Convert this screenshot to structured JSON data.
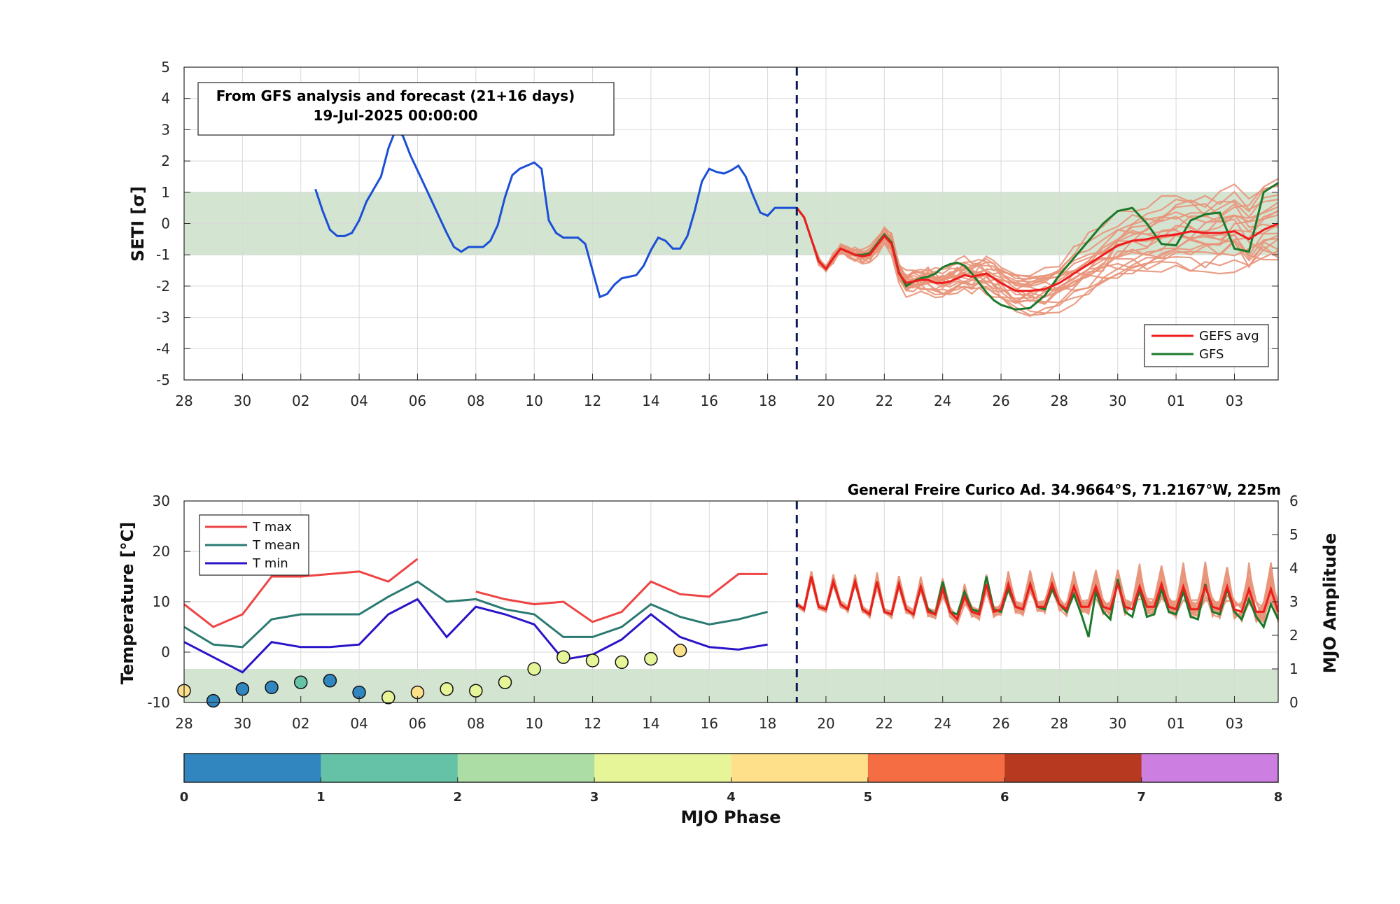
{
  "colors": {
    "obs_line": "#1a4fd6",
    "ensemble": "#e8957a",
    "gefs_avg": "#ee1c1c",
    "gfs": "#1a7a2a",
    "band": "#d3e4d1",
    "tmax": "#ee4444",
    "tmean": "#2a7a72",
    "tmin": "#2a14c8",
    "forecast_divider": "#0c1a5a"
  },
  "chart_data": [
    {
      "type": "line",
      "ylabel": "SETI [σ]",
      "ylim": [
        -5,
        5
      ],
      "yticks": [
        "5",
        "4",
        "3",
        "2",
        "1",
        "0",
        "-1",
        "-2",
        "-3",
        "-4",
        "-5"
      ],
      "x_range_days": [
        0,
        37.5
      ],
      "xticks": [
        "28",
        "30",
        "02",
        "04",
        "06",
        "08",
        "10",
        "12",
        "14",
        "16",
        "18",
        "20",
        "22",
        "24",
        "26",
        "28",
        "30",
        "01",
        "03"
      ],
      "grid": true,
      "normal_band": [
        -1,
        1
      ],
      "forecast_start_day": 21,
      "annotation": {
        "line1": "From GFS analysis and forecast (21+16 days)",
        "line2": "19-Jul-2025 00:00:00"
      },
      "legend": {
        "placement": "bottom-right",
        "entries": [
          "GEFS avg",
          "GFS"
        ]
      },
      "series": [
        {
          "role": "observed",
          "x": [
            4.5,
            4.75,
            5,
            5.25,
            5.5,
            5.75,
            6,
            6.25,
            6.5,
            6.75,
            7,
            7.25,
            7.5,
            7.75,
            8,
            8.25,
            8.5,
            8.75,
            9,
            9.25,
            9.5,
            9.75,
            10,
            10.25,
            10.5,
            10.75,
            11,
            11.25,
            11.5,
            11.75,
            12,
            12.25,
            12.5,
            12.75,
            13,
            13.25,
            13.5,
            13.75,
            14,
            14.25,
            14.5,
            14.75,
            15,
            15.25,
            15.5,
            15.75,
            16,
            16.25,
            16.5,
            16.75,
            17,
            17.25,
            17.5,
            17.75,
            18,
            18.25,
            18.5,
            18.75,
            19,
            19.25,
            19.5,
            19.75,
            20,
            20.25,
            20.5,
            20.75,
            21
          ],
          "y": [
            1.1,
            0.4,
            -0.2,
            -0.4,
            -0.4,
            -0.3,
            0.1,
            0.7,
            1.1,
            1.5,
            2.4,
            3.0,
            2.8,
            2.2,
            1.7,
            1.2,
            0.7,
            0.2,
            -0.3,
            -0.75,
            -0.9,
            -0.75,
            -0.75,
            -0.75,
            -0.55,
            -0.05,
            0.85,
            1.55,
            1.75,
            1.85,
            1.95,
            1.75,
            0.1,
            -0.3,
            -0.45,
            -0.45,
            -0.45,
            -0.65,
            -1.5,
            -2.35,
            -2.25,
            -1.95,
            -1.75,
            -1.7,
            -1.65,
            -1.35,
            -0.85,
            -0.45,
            -0.55,
            -0.8,
            -0.8,
            -0.4,
            0.4,
            1.35,
            1.75,
            1.65,
            1.6,
            1.7,
            1.85,
            1.5,
            0.9,
            0.35,
            0.25,
            0.5,
            0.5,
            0.5,
            0.5
          ]
        },
        {
          "name": "GEFS avg",
          "x": [
            21,
            21.25,
            21.5,
            21.75,
            22,
            22.25,
            22.5,
            22.75,
            23,
            23.25,
            23.5,
            23.75,
            24,
            24.25,
            24.5,
            24.75,
            25,
            25.25,
            25.5,
            25.75,
            26,
            26.25,
            26.5,
            26.75,
            27,
            27.25,
            27.5,
            27.75,
            28,
            28.5,
            29,
            29.5,
            30,
            30.5,
            31,
            31.5,
            32,
            32.5,
            33,
            33.5,
            34,
            34.5,
            35,
            35.5,
            36,
            36.5,
            37,
            37.5
          ],
          "y": [
            0.5,
            0.2,
            -0.5,
            -1.2,
            -1.45,
            -1.1,
            -0.8,
            -0.9,
            -1.0,
            -1.05,
            -1.0,
            -0.7,
            -0.4,
            -0.65,
            -1.6,
            -1.9,
            -1.85,
            -1.8,
            -1.8,
            -1.9,
            -1.9,
            -1.85,
            -1.75,
            -1.65,
            -1.7,
            -1.65,
            -1.6,
            -1.75,
            -1.9,
            -2.15,
            -2.15,
            -2.1,
            -1.9,
            -1.6,
            -1.3,
            -1.0,
            -0.7,
            -0.55,
            -0.5,
            -0.4,
            -0.35,
            -0.25,
            -0.3,
            -0.3,
            -0.25,
            -0.5,
            -0.2,
            0.0
          ]
        },
        {
          "name": "GFS",
          "x": [
            21,
            21.25,
            21.5,
            21.75,
            22,
            22.25,
            22.5,
            22.75,
            23,
            23.25,
            23.5,
            23.75,
            24,
            24.25,
            24.5,
            24.75,
            25,
            25.25,
            25.5,
            25.75,
            26,
            26.25,
            26.5,
            26.75,
            27,
            27.25,
            27.5,
            27.75,
            28,
            28.5,
            29,
            29.5,
            30,
            30.5,
            31,
            31.5,
            32,
            32.5,
            33,
            33.5,
            34,
            34.5,
            35,
            35.5,
            36,
            36.5,
            37,
            37.5
          ],
          "y": [
            0.5,
            0.2,
            -0.5,
            -1.2,
            -1.45,
            -1.1,
            -0.8,
            -0.9,
            -1.0,
            -1.0,
            -0.95,
            -0.65,
            -0.35,
            -0.6,
            -1.55,
            -2.0,
            -1.85,
            -1.75,
            -1.7,
            -1.6,
            -1.4,
            -1.3,
            -1.25,
            -1.35,
            -1.6,
            -1.9,
            -2.2,
            -2.45,
            -2.6,
            -2.75,
            -2.7,
            -2.3,
            -1.65,
            -1.1,
            -0.55,
            0.0,
            0.4,
            0.5,
            0.0,
            -0.65,
            -0.7,
            0.1,
            0.3,
            0.35,
            -0.8,
            -0.9,
            1.0,
            1.3
          ]
        }
      ]
    },
    {
      "type": "line",
      "title": "General Freire Curico Ad. 34.9664°S, 71.2167°W, 225m",
      "ylabel": "Temperature [°C]",
      "ylabel_right": "MJO Amplitude",
      "ylim": [
        -10,
        30
      ],
      "ylim_right": [
        0,
        6
      ],
      "yticks": [
        "30",
        "20",
        "10",
        "0",
        "-10"
      ],
      "yticks_right": [
        "6",
        "5",
        "4",
        "3",
        "2",
        "1",
        "0"
      ],
      "x_range_days": [
        0,
        37.5
      ],
      "xticks": [
        "28",
        "30",
        "02",
        "04",
        "06",
        "08",
        "10",
        "12",
        "14",
        "16",
        "18",
        "20",
        "22",
        "24",
        "26",
        "28",
        "30",
        "01",
        "03"
      ],
      "grid": true,
      "mjo_band": [
        0,
        1
      ],
      "forecast_start_day": 21,
      "legend": {
        "placement": "top-left",
        "entries": [
          "T max",
          "T mean",
          "T min"
        ]
      },
      "series": [
        {
          "name": "T max",
          "segments": [
            {
              "x": [
                0,
                1,
                2,
                3,
                4,
                5,
                6,
                7,
                8
              ],
              "y": [
                9.5,
                5.0,
                7.5,
                15.0,
                15.0,
                15.5,
                16.0,
                14.0,
                18.5
              ]
            },
            {
              "x": [
                10,
                11,
                12,
                13,
                14,
                15,
                16,
                17,
                18,
                19,
                20
              ],
              "y": [
                12.0,
                10.5,
                9.5,
                10.0,
                6.0,
                8.0,
                14.0,
                11.5,
                11.0,
                15.5,
                15.5
              ]
            }
          ]
        },
        {
          "name": "T mean",
          "segments": [
            {
              "x": [
                0,
                1,
                2,
                3,
                4,
                5,
                6,
                7,
                8,
                9,
                10,
                11,
                12,
                13,
                14,
                15,
                16,
                17,
                18,
                19,
                20
              ],
              "y": [
                5.0,
                1.5,
                1.0,
                6.5,
                7.5,
                7.5,
                7.5,
                11.0,
                14.0,
                10.0,
                10.5,
                8.5,
                7.5,
                3.0,
                3.0,
                5.0,
                9.5,
                7.0,
                5.5,
                6.5,
                8.0
              ]
            }
          ]
        },
        {
          "name": "T min",
          "segments": [
            {
              "x": [
                0,
                1,
                2,
                3,
                4,
                5,
                6,
                7,
                8,
                9,
                10,
                11,
                12,
                13,
                14,
                15,
                16,
                17,
                18,
                19,
                20
              ],
              "y": [
                2.0,
                -1.0,
                -4.0,
                2.0,
                1.0,
                1.0,
                1.5,
                7.5,
                10.5,
                3.0,
                9.0,
                7.5,
                5.5,
                -1.5,
                -0.5,
                2.5,
                7.5,
                3.0,
                1.0,
                0.5,
                1.5
              ]
            }
          ]
        },
        {
          "name": "GEFS avg",
          "x": [
            21,
            21.25,
            21.5,
            21.75,
            22,
            22.25,
            22.5,
            22.75,
            23,
            23.25,
            23.5,
            23.75,
            24,
            24.25,
            24.5,
            24.75,
            25,
            25.25,
            25.5,
            25.75,
            26,
            26.25,
            26.5,
            26.75,
            27,
            27.25,
            27.5,
            27.75,
            28,
            28.25,
            28.5,
            28.75,
            29,
            29.25,
            29.5,
            29.75,
            30,
            30.25,
            30.5,
            30.75,
            31,
            31.25,
            31.5,
            31.75,
            32,
            32.25,
            32.5,
            32.75,
            33,
            33.25,
            33.5,
            33.75,
            34,
            34.25,
            34.5,
            34.75,
            35,
            35.25,
            35.5,
            35.75,
            36,
            36.25,
            36.5,
            36.75,
            37,
            37.25,
            37.5
          ],
          "y": [
            9.5,
            8.5,
            15.0,
            9.0,
            8.5,
            14.0,
            9.5,
            8.5,
            14.0,
            8.5,
            7.5,
            14.0,
            8.0,
            7.5,
            13.5,
            8.5,
            7.5,
            13.0,
            8.0,
            7.5,
            12.5,
            8.0,
            6.5,
            11.0,
            8.0,
            7.5,
            13.5,
            8.0,
            8.5,
            13.5,
            9.0,
            8.5,
            13.5,
            9.0,
            9.0,
            13.5,
            9.5,
            8.5,
            13.0,
            9.0,
            9.0,
            13.0,
            9.0,
            8.5,
            13.5,
            9.0,
            8.5,
            13.0,
            9.0,
            9.0,
            13.5,
            9.0,
            8.5,
            13.0,
            8.5,
            8.5,
            13.0,
            9.0,
            8.5,
            13.0,
            8.5,
            8.0,
            12.5,
            8.0,
            8.0,
            12.5,
            8.0
          ]
        },
        {
          "name": "GFS",
          "x": [
            21,
            21.25,
            21.5,
            21.75,
            22,
            22.25,
            22.5,
            22.75,
            23,
            23.25,
            23.5,
            23.75,
            24,
            24.25,
            24.5,
            24.75,
            25,
            25.25,
            25.5,
            25.75,
            26,
            26.25,
            26.5,
            26.75,
            27,
            27.25,
            27.5,
            27.75,
            28,
            28.25,
            28.5,
            28.75,
            29,
            29.25,
            29.5,
            29.75,
            30,
            30.25,
            30.5,
            30.75,
            31,
            31.25,
            31.5,
            31.75,
            32,
            32.25,
            32.5,
            32.75,
            33,
            33.25,
            33.5,
            33.75,
            34,
            34.25,
            34.5,
            34.75,
            35,
            35.25,
            35.5,
            35.75,
            36,
            36.25,
            36.5,
            36.75,
            37,
            37.25,
            37.5
          ],
          "y": [
            9.5,
            8.5,
            15.0,
            9.0,
            8.5,
            14.0,
            9.5,
            8.5,
            14.0,
            8.5,
            7.5,
            14.0,
            8.0,
            7.5,
            13.5,
            8.5,
            7.5,
            13.0,
            8.5,
            7.5,
            14.0,
            8.0,
            7.5,
            12.0,
            8.5,
            8.0,
            15.0,
            8.5,
            8.0,
            12.5,
            9.0,
            8.5,
            13.5,
            9.0,
            8.5,
            12.5,
            9.5,
            8.0,
            11.5,
            7.5,
            3.0,
            12.0,
            8.0,
            6.5,
            14.5,
            8.0,
            7.0,
            12.5,
            7.0,
            7.5,
            12.5,
            8.0,
            7.5,
            12.0,
            7.0,
            6.5,
            13.5,
            8.0,
            7.5,
            12.5,
            8.0,
            6.5,
            10.5,
            7.0,
            5.0,
            9.5,
            6.5
          ]
        },
        {
          "role": "mjo_phase_points",
          "axis": "right",
          "x": [
            0,
            1,
            2,
            3,
            4,
            5,
            6,
            7,
            8,
            9,
            10,
            11,
            12,
            13,
            14,
            15,
            16,
            17
          ],
          "y": [
            0.35,
            0.05,
            0.4,
            0.45,
            0.6,
            0.65,
            0.3,
            0.15,
            0.3,
            0.4,
            0.35,
            0.6,
            1.0,
            1.35,
            1.25,
            1.2,
            1.3,
            1.55
          ],
          "phase": [
            4,
            0,
            0,
            0,
            1,
            0,
            0,
            3,
            4,
            3,
            3,
            3,
            3,
            3,
            3,
            3,
            3,
            4
          ]
        }
      ]
    },
    {
      "type": "heatmap",
      "role": "colorbar",
      "xlabel": "MJO Phase",
      "ticks": [
        "0",
        "1",
        "2",
        "3",
        "4",
        "5",
        "6",
        "7",
        "8"
      ],
      "colors": [
        "#3186c0",
        "#66c2a6",
        "#abddA4",
        "#e6f598",
        "#fee08b",
        "#f46d43",
        "#b73a20",
        "#cc7fe0"
      ]
    }
  ]
}
